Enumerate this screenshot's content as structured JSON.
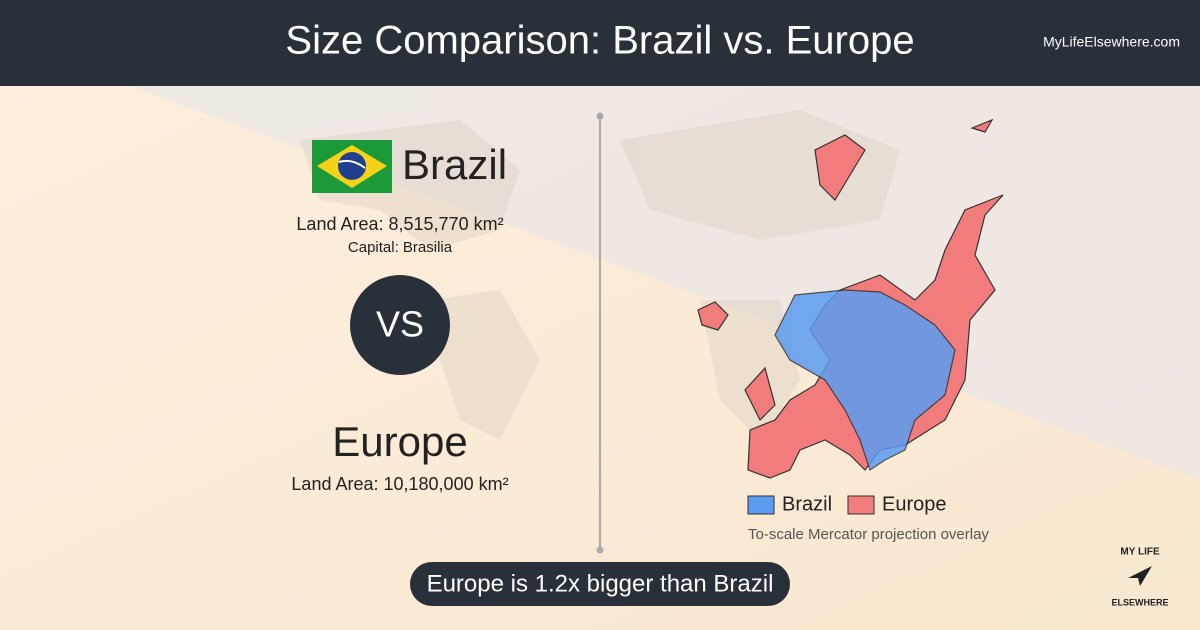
{
  "header": {
    "title": "Size Comparison: Brazil vs. Europe",
    "site": "MyLifeElsewhere.com"
  },
  "comparison": {
    "first": {
      "name": "Brazil",
      "land_area": "Land Area: 8,515,770 km²",
      "capital": "Capital: Brasilia"
    },
    "separator": "VS",
    "second": {
      "name": "Europe",
      "land_area": "Land Area: 10,180,000 km²"
    }
  },
  "map": {
    "legend": [
      {
        "name": "Brazil",
        "color": "#5b9cf0"
      },
      {
        "name": "Europe",
        "color": "#f27b7b"
      }
    ],
    "caption": "To-scale Mercator projection overlay"
  },
  "summary": "Europe is 1.2x bigger than Brazil",
  "logo": {
    "line1": "MY LIFE",
    "line2": "ELSEWHERE"
  }
}
